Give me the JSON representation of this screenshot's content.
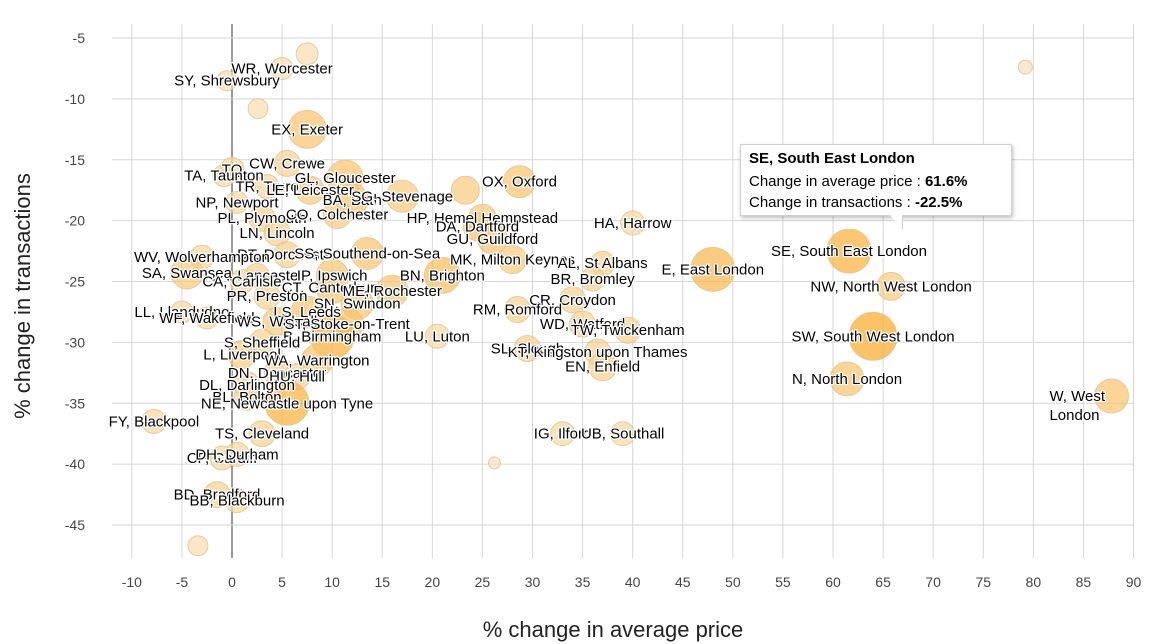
{
  "chart_data": {
    "type": "scatter",
    "title": "",
    "xlabel": "% change in average price",
    "ylabel": "% change in transactions",
    "xlim": [
      -12,
      91
    ],
    "ylim": [
      -48,
      -3
    ],
    "xticks": [
      -10,
      -5,
      0,
      5,
      10,
      15,
      20,
      25,
      30,
      35,
      40,
      45,
      50,
      55,
      60,
      65,
      70,
      75,
      80,
      85,
      90
    ],
    "yticks": [
      -5,
      -10,
      -15,
      -20,
      -25,
      -30,
      -35,
      -40,
      -45
    ],
    "grid": true,
    "points": [
      {
        "x": 5.0,
        "y": -7.5,
        "size": 11,
        "intensity": 0.1,
        "label": "WR, Worcester",
        "labeled": true
      },
      {
        "x": 7.5,
        "y": -6.3,
        "size": 11,
        "intensity": 0.1,
        "label": "",
        "labeled": false
      },
      {
        "x": -0.5,
        "y": -8.5,
        "size": 10,
        "intensity": 0.1,
        "label": "SY, Shrewsbury",
        "labeled": true
      },
      {
        "x": 2.6,
        "y": -10.8,
        "size": 10,
        "intensity": 0.1,
        "label": "",
        "labeled": false
      },
      {
        "x": 7.5,
        "y": -12.5,
        "size": 19,
        "intensity": 0.5,
        "label": "EX, Exeter",
        "labeled": true
      },
      {
        "x": 5.5,
        "y": -15.3,
        "size": 13,
        "intensity": 0.3,
        "label": "CW, Crewe",
        "labeled": true
      },
      {
        "x": 0.0,
        "y": -15.8,
        "size": 12,
        "intensity": 0.2,
        "label": "TQ",
        "labeled": true
      },
      {
        "x": -0.8,
        "y": -16.3,
        "size": 11,
        "intensity": 0.2,
        "label": "TA, Taunton",
        "labeled": true
      },
      {
        "x": 11.3,
        "y": -16.5,
        "size": 18,
        "intensity": 0.5,
        "label": "GL, Gloucester",
        "labeled": true
      },
      {
        "x": 3.5,
        "y": -17.2,
        "size": 12,
        "intensity": 0.2,
        "label": "TR, Truro",
        "labeled": true
      },
      {
        "x": 7.8,
        "y": -17.5,
        "size": 14,
        "intensity": 0.4,
        "label": "LE, Leicester",
        "labeled": true
      },
      {
        "x": 28.7,
        "y": -16.8,
        "size": 16,
        "intensity": 0.5,
        "label": "OX, Oxford",
        "labeled": true
      },
      {
        "x": 23.3,
        "y": -17.5,
        "size": 14,
        "intensity": 0.4,
        "label": "",
        "labeled": false
      },
      {
        "x": 0.5,
        "y": -18.5,
        "size": 11,
        "intensity": 0.2,
        "label": "NP, Newport",
        "labeled": true
      },
      {
        "x": 12.0,
        "y": -18.3,
        "size": 16,
        "intensity": 0.5,
        "label": "BA, Bath",
        "labeled": true
      },
      {
        "x": 17.0,
        "y": -18.0,
        "size": 16,
        "intensity": 0.4,
        "label": "SG, Stevenage",
        "labeled": true
      },
      {
        "x": 25.0,
        "y": -19.8,
        "size": 14,
        "intensity": 0.4,
        "label": "HP, Hemel Hempstead",
        "labeled": true
      },
      {
        "x": 3.0,
        "y": -19.8,
        "size": 13,
        "intensity": 0.3,
        "label": "PL, Plymouth",
        "labeled": true
      },
      {
        "x": 10.5,
        "y": -19.5,
        "size": 14,
        "intensity": 0.4,
        "label": "CO, Colchester",
        "labeled": true
      },
      {
        "x": 24.5,
        "y": -20.5,
        "size": 14,
        "intensity": 0.5,
        "label": "DA, Dartford",
        "labeled": true
      },
      {
        "x": 40.0,
        "y": -20.2,
        "size": 12,
        "intensity": 0.2,
        "label": "HA, Harrow",
        "labeled": true
      },
      {
        "x": 4.5,
        "y": -21.0,
        "size": 13,
        "intensity": 0.3,
        "label": "LN, Lincoln",
        "labeled": true
      },
      {
        "x": 26.0,
        "y": -21.5,
        "size": 15,
        "intensity": 0.5,
        "label": "GU, Guildford",
        "labeled": true
      },
      {
        "x": 5.5,
        "y": -22.8,
        "size": 13,
        "intensity": 0.3,
        "label": "DT, Dorchester",
        "labeled": true
      },
      {
        "x": 13.5,
        "y": -22.7,
        "size": 16,
        "intensity": 0.5,
        "label": "SS, Southend-on-Sea",
        "labeled": true
      },
      {
        "x": 28.0,
        "y": -23.2,
        "size": 14,
        "intensity": 0.4,
        "label": "MK, Milton Keynes",
        "labeled": true
      },
      {
        "x": -3.0,
        "y": -23.0,
        "size": 12,
        "intensity": 0.2,
        "label": "WV, Wolverhampton",
        "labeled": true
      },
      {
        "x": 37.0,
        "y": -23.5,
        "size": 12,
        "intensity": 0.3,
        "label": "AL, St Albans",
        "labeled": true
      },
      {
        "x": 48.0,
        "y": -24.0,
        "size": 22,
        "intensity": 0.7,
        "label": "E, East London",
        "labeled": true
      },
      {
        "x": 36.0,
        "y": -24.8,
        "size": 12,
        "intensity": 0.3,
        "label": "BR, Bromley",
        "labeled": true
      },
      {
        "x": 2.5,
        "y": -24.5,
        "size": 12,
        "intensity": 0.3,
        "label": "LA, Lancaster",
        "labeled": true
      },
      {
        "x": 10.0,
        "y": -24.5,
        "size": 16,
        "intensity": 0.5,
        "label": "IP, Ipswich",
        "labeled": true
      },
      {
        "x": 21.0,
        "y": -24.5,
        "size": 18,
        "intensity": 0.6,
        "label": "BN, Brighton",
        "labeled": true
      },
      {
        "x": 61.6,
        "y": -22.5,
        "size": 22,
        "intensity": 0.8,
        "label": "SE, South East London",
        "labeled": true
      },
      {
        "x": -4.5,
        "y": -24.3,
        "size": 16,
        "intensity": 0.4,
        "label": "SA, Swansea",
        "labeled": true
      },
      {
        "x": 1.0,
        "y": -25.0,
        "size": 12,
        "intensity": 0.2,
        "label": "CA, Carlisle",
        "labeled": true
      },
      {
        "x": 10.0,
        "y": -25.5,
        "size": 16,
        "intensity": 0.5,
        "label": "CT, Canterbury",
        "labeled": true
      },
      {
        "x": 16.0,
        "y": -25.8,
        "size": 16,
        "intensity": 0.5,
        "label": "ME, Rochester",
        "labeled": true
      },
      {
        "x": 65.8,
        "y": -25.4,
        "size": 14,
        "intensity": 0.4,
        "label": "NW, North West London",
        "labeled": true
      },
      {
        "x": 3.5,
        "y": -26.2,
        "size": 13,
        "intensity": 0.3,
        "label": "PR, Preston",
        "labeled": true
      },
      {
        "x": 12.5,
        "y": -26.8,
        "size": 16,
        "intensity": 0.5,
        "label": "SN, Swindon",
        "labeled": true
      },
      {
        "x": 34.0,
        "y": -26.5,
        "size": 13,
        "intensity": 0.3,
        "label": "CR, Croydon",
        "labeled": true
      },
      {
        "x": 7.5,
        "y": -27.5,
        "size": 16,
        "intensity": 0.5,
        "label": "LS, Leeds",
        "labeled": true
      },
      {
        "x": 28.5,
        "y": -27.3,
        "size": 13,
        "intensity": 0.3,
        "label": "RM, Romford",
        "labeled": true
      },
      {
        "x": 35.0,
        "y": -28.5,
        "size": 13,
        "intensity": 0.3,
        "label": "WD, Watford",
        "labeled": true
      },
      {
        "x": -5.0,
        "y": -27.5,
        "size": 11,
        "intensity": 0.2,
        "label": "LL, Llandudno",
        "labeled": true
      },
      {
        "x": -2.5,
        "y": -28.0,
        "size": 11,
        "intensity": 0.2,
        "label": "WF, Wakefield",
        "labeled": true
      },
      {
        "x": 4.5,
        "y": -28.3,
        "size": 14,
        "intensity": 0.4,
        "label": "WS, Walsall",
        "labeled": true
      },
      {
        "x": 11.5,
        "y": -28.5,
        "size": 16,
        "intensity": 0.5,
        "label": "ST, Stoke-on-Trent",
        "labeled": true
      },
      {
        "x": 39.5,
        "y": -29.0,
        "size": 13,
        "intensity": 0.3,
        "label": "TW, Twickenham",
        "labeled": true
      },
      {
        "x": 64.0,
        "y": -29.5,
        "size": 24,
        "intensity": 0.9,
        "label": "SW, South West London",
        "labeled": true
      },
      {
        "x": 10.0,
        "y": -29.5,
        "size": 22,
        "intensity": 0.8,
        "label": "B, Birmingham",
        "labeled": true
      },
      {
        "x": 20.5,
        "y": -29.5,
        "size": 12,
        "intensity": 0.2,
        "label": "LU, Luton",
        "labeled": true
      },
      {
        "x": 3.0,
        "y": -30.0,
        "size": 13,
        "intensity": 0.3,
        "label": "S, Sheffield",
        "labeled": true
      },
      {
        "x": 1.0,
        "y": -31.0,
        "size": 14,
        "intensity": 0.4,
        "label": "L, Liverpool",
        "labeled": true
      },
      {
        "x": 29.5,
        "y": -30.5,
        "size": 13,
        "intensity": 0.3,
        "label": "SL, Slough",
        "labeled": true
      },
      {
        "x": 36.5,
        "y": -30.8,
        "size": 13,
        "intensity": 0.3,
        "label": "KT, Kingston upon Thames",
        "labeled": true
      },
      {
        "x": 8.5,
        "y": -31.5,
        "size": 16,
        "intensity": 0.5,
        "label": "WA, Warrington",
        "labeled": true
      },
      {
        "x": 4.5,
        "y": -32.5,
        "size": 13,
        "intensity": 0.3,
        "label": "DN, Doncaster",
        "labeled": true
      },
      {
        "x": 6.5,
        "y": -32.8,
        "size": 13,
        "intensity": 0.3,
        "label": "HU, Hull",
        "labeled": true
      },
      {
        "x": 37.0,
        "y": -32.0,
        "size": 14,
        "intensity": 0.3,
        "label": "EN, Enfield",
        "labeled": true
      },
      {
        "x": 1.5,
        "y": -33.5,
        "size": 13,
        "intensity": 0.3,
        "label": "DL, Darlington",
        "labeled": true
      },
      {
        "x": 61.4,
        "y": -33.0,
        "size": 17,
        "intensity": 0.5,
        "label": "N, North London",
        "labeled": true
      },
      {
        "x": 1.5,
        "y": -34.5,
        "size": 13,
        "intensity": 0.3,
        "label": "BL, Bolton",
        "labeled": true
      },
      {
        "x": 5.5,
        "y": -35.0,
        "size": 22,
        "intensity": 0.8,
        "label": "NE, Newcastle upon Tyne",
        "labeled": true
      },
      {
        "x": 87.8,
        "y": -34.4,
        "size": 17,
        "intensity": 0.5,
        "label": "W, West London",
        "labeled": true
      },
      {
        "x": -7.8,
        "y": -36.5,
        "size": 12,
        "intensity": 0.2,
        "label": "FY, Blackpool",
        "labeled": true
      },
      {
        "x": 3.0,
        "y": -37.5,
        "size": 13,
        "intensity": 0.3,
        "label": "TS, Cleveland",
        "labeled": true
      },
      {
        "x": 33.0,
        "y": -37.5,
        "size": 12,
        "intensity": 0.2,
        "label": "IG, Ilford",
        "labeled": true
      },
      {
        "x": 39.0,
        "y": -37.5,
        "size": 12,
        "intensity": 0.2,
        "label": "UB, Southall",
        "labeled": true
      },
      {
        "x": -1.0,
        "y": -39.5,
        "size": 12,
        "intensity": 0.2,
        "label": "CF, Cardiff",
        "labeled": true
      },
      {
        "x": 0.5,
        "y": -39.2,
        "size": 12,
        "intensity": 0.2,
        "label": "DH, Durham",
        "labeled": true
      },
      {
        "x": 26.2,
        "y": -39.9,
        "size": 6,
        "intensity": 0.05,
        "label": "",
        "labeled": false
      },
      {
        "x": -1.5,
        "y": -42.5,
        "size": 13,
        "intensity": 0.3,
        "label": "BD, Bradford",
        "labeled": true
      },
      {
        "x": 0.5,
        "y": -43.0,
        "size": 12,
        "intensity": 0.2,
        "label": "BB, Blackburn",
        "labeled": true
      },
      {
        "x": -3.4,
        "y": -46.7,
        "size": 10,
        "intensity": 0.1,
        "label": "",
        "labeled": false
      },
      {
        "x": 79.2,
        "y": -7.4,
        "size": 7,
        "intensity": 0.05,
        "label": "",
        "labeled": false
      }
    ],
    "tooltip": {
      "title": "SE, South East London",
      "price_label": "Change in average price",
      "price_value": "61.6%",
      "trans_label": "Change in transactions",
      "trans_value": "-22.5%"
    }
  }
}
